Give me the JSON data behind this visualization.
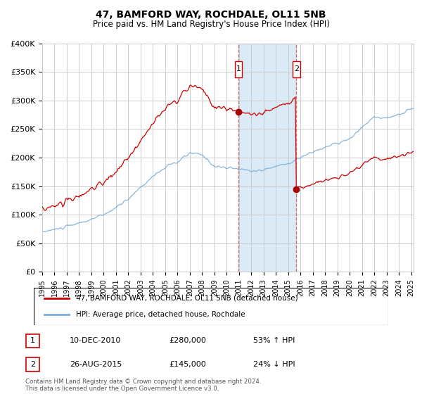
{
  "title": "47, BAMFORD WAY, ROCHDALE, OL11 5NB",
  "subtitle": "Price paid vs. HM Land Registry's House Price Index (HPI)",
  "ylim": [
    0,
    400000
  ],
  "xlim_start": 1995.0,
  "xlim_end": 2025.2,
  "yticks": [
    0,
    50000,
    100000,
    150000,
    200000,
    250000,
    300000,
    350000,
    400000
  ],
  "ytick_labels": [
    "£0",
    "£50K",
    "£100K",
    "£150K",
    "£200K",
    "£250K",
    "£300K",
    "£350K",
    "£400K"
  ],
  "sale1_date": "10-DEC-2010",
  "sale1_price": 280000,
  "sale1_label": "£280,000",
  "sale1_pct": "53% ↑ HPI",
  "sale1_x": 2010.95,
  "sale2_date": "26-AUG-2015",
  "sale2_price": 145000,
  "sale2_label": "£145,000",
  "sale2_pct": "24% ↓ HPI",
  "sale2_x": 2015.67,
  "line1_label": "47, BAMFORD WAY, ROCHDALE, OL11 5NB (detached house)",
  "line2_label": "HPI: Average price, detached house, Rochdale",
  "line1_color": "#cc0000",
  "line2_color": "#7aafdb",
  "marker_color": "#aa0000",
  "footer": "Contains HM Land Registry data © Crown copyright and database right 2024.\nThis data is licensed under the Open Government Licence v3.0.",
  "bg_color": "#ffffff",
  "grid_color": "#cccccc",
  "shade_color": "#daeaf7"
}
